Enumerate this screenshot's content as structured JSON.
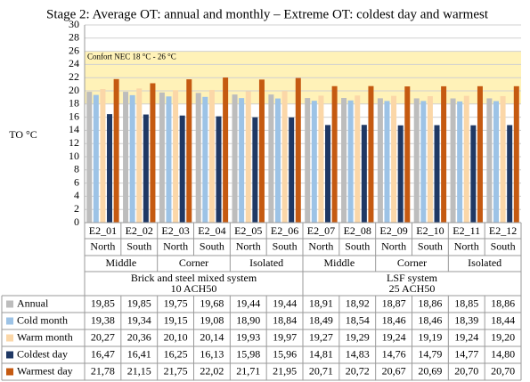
{
  "chart_data": {
    "type": "bar",
    "title": "Stage 2: Average OT: annual and monthly – Extreme OT: coldest day and warmest",
    "y_label": "TO °C",
    "categories": [
      "E2_01",
      "E2_02",
      "E2_03",
      "E2_04",
      "E2_05",
      "E2_06",
      "E2_07",
      "E2_08",
      "E2_09",
      "E2_10",
      "E2_11",
      "E2_12"
    ],
    "orientation": [
      "North",
      "South",
      "North",
      "South",
      "North",
      "South",
      "North",
      "South",
      "North",
      "South",
      "North",
      "South"
    ],
    "groups": [
      "Middle",
      "Corner",
      "Isolated",
      "Middle",
      "Corner",
      "Isolated"
    ],
    "systems": [
      {
        "name": "Brick and steel mixed system",
        "subtitle": "10 ACH50"
      },
      {
        "name": "LSF system",
        "subtitle": "25 ACH50"
      }
    ],
    "comfort_band": {
      "label": "Confort NEC 18 °C - 26 °C",
      "range": [
        18,
        26
      ],
      "color": "#fff2b8"
    },
    "ylim": [
      0,
      30
    ],
    "yticks": [
      0,
      2,
      4,
      6,
      8,
      10,
      12,
      14,
      16,
      18,
      20,
      22,
      24,
      26,
      28,
      30
    ],
    "grid": true,
    "series": [
      {
        "name": "Annual",
        "color": "#bdbdbd",
        "values": [
          19.85,
          19.85,
          19.75,
          19.68,
          19.44,
          19.44,
          18.91,
          18.92,
          18.87,
          18.86,
          18.85,
          18.86
        ],
        "value_labels": [
          "19,85",
          "19,85",
          "19,75",
          "19,68",
          "19,44",
          "19,44",
          "18,91",
          "18,92",
          "18,87",
          "18,86",
          "18,85",
          "18,86"
        ]
      },
      {
        "name": "Cold month",
        "color": "#9dc3e6",
        "values": [
          19.38,
          19.34,
          19.15,
          19.08,
          18.9,
          18.84,
          18.49,
          18.54,
          18.46,
          18.46,
          18.39,
          18.44
        ],
        "value_labels": [
          "19,38",
          "19,34",
          "19,15",
          "19,08",
          "18,90",
          "18,84",
          "18,49",
          "18,54",
          "18,46",
          "18,46",
          "18,39",
          "18,44"
        ]
      },
      {
        "name": "Warm month",
        "color": "#fbd7a8",
        "values": [
          20.27,
          20.36,
          20.1,
          20.14,
          19.93,
          19.97,
          19.27,
          19.29,
          19.24,
          19.19,
          19.24,
          19.2
        ],
        "value_labels": [
          "20,27",
          "20,36",
          "20,10",
          "20,14",
          "19,93",
          "19,97",
          "19,27",
          "19,29",
          "19,24",
          "19,19",
          "19,24",
          "19,20"
        ]
      },
      {
        "name": "Coldest day",
        "color": "#1f3864",
        "values": [
          16.47,
          16.41,
          16.25,
          16.13,
          15.98,
          15.96,
          14.81,
          14.83,
          14.76,
          14.79,
          14.77,
          14.8
        ],
        "value_labels": [
          "16,47",
          "16,41",
          "16,25",
          "16,13",
          "15,98",
          "15,96",
          "14,81",
          "14,83",
          "14,76",
          "14,79",
          "14,77",
          "14,80"
        ]
      },
      {
        "name": "Warmest day",
        "color": "#c55a11",
        "values": [
          21.78,
          21.15,
          21.75,
          22.02,
          21.71,
          21.95,
          20.71,
          20.72,
          20.67,
          20.69,
          20.7,
          20.7
        ],
        "value_labels": [
          "21,78",
          "21,15",
          "21,75",
          "22,02",
          "21,71",
          "21,95",
          "20,71",
          "20,72",
          "20,67",
          "20,69",
          "20,70",
          "20,70"
        ]
      }
    ]
  }
}
